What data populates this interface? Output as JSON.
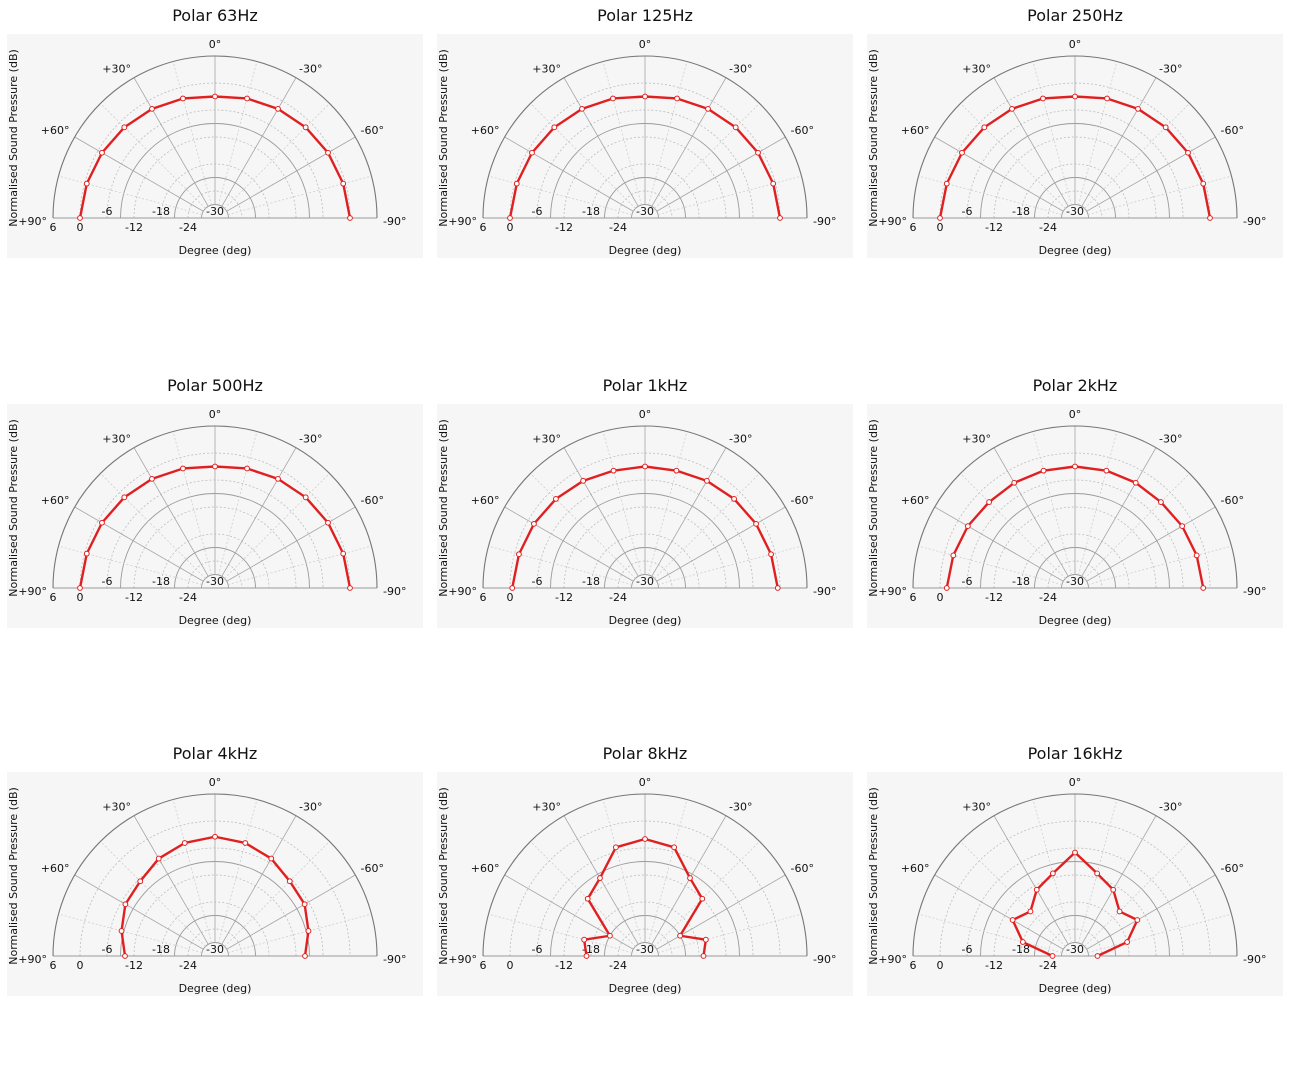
{
  "chart_data": [
    {
      "type": "polar",
      "title": "Polar 63Hz",
      "xlabel": "Degree  (deg)",
      "ylabel": "Normalised Sound Pressure  (dB)",
      "rlim": [
        -30,
        6
      ],
      "angle_range": [
        90,
        -90
      ],
      "r_ticks": [
        "6",
        "0",
        "-6",
        "-12",
        "-18",
        "-24",
        "-30"
      ],
      "angle_labels": [
        "+90°",
        "+60°",
        "+30°",
        "0°",
        "-30°",
        "-60°",
        "-90°"
      ],
      "angles": [
        90,
        75,
        60,
        45,
        30,
        15,
        0,
        -15,
        -30,
        -45,
        -60,
        -75,
        -90
      ],
      "values": [
        0,
        -0.5,
        -1,
        -1.5,
        -2,
        -2.5,
        -3,
        -2.5,
        -2,
        -1.5,
        -1,
        -0.5,
        0
      ],
      "series_color": "#e02020"
    },
    {
      "type": "polar",
      "title": "Polar 125Hz",
      "xlabel": "Degree  (deg)",
      "ylabel": "Normalised Sound Pressure  (dB)",
      "rlim": [
        -30,
        6
      ],
      "angle_range": [
        90,
        -90
      ],
      "r_ticks": [
        "6",
        "0",
        "-6",
        "-12",
        "-18",
        "-24",
        "-30"
      ],
      "angle_labels": [
        "+90°",
        "+60°",
        "+30°",
        "0°",
        "-30°",
        "-60°",
        "-90°"
      ],
      "angles": [
        90,
        75,
        60,
        45,
        30,
        15,
        0,
        -15,
        -30,
        -45,
        -60,
        -75,
        -90
      ],
      "values": [
        0,
        -0.5,
        -1,
        -1.5,
        -2,
        -2.5,
        -3,
        -2.5,
        -2,
        -1.5,
        -1,
        -0.5,
        0
      ],
      "series_color": "#e02020"
    },
    {
      "type": "polar",
      "title": "Polar 250Hz",
      "xlabel": "Degree  (deg)",
      "ylabel": "Normalised Sound Pressure  (dB)",
      "rlim": [
        -30,
        6
      ],
      "angle_range": [
        90,
        -90
      ],
      "r_ticks": [
        "6",
        "0",
        "-6",
        "-12",
        "-18",
        "-24",
        "-30"
      ],
      "angle_labels": [
        "+90°",
        "+60°",
        "+30°",
        "0°",
        "-30°",
        "-60°",
        "-90°"
      ],
      "angles": [
        90,
        75,
        60,
        45,
        30,
        15,
        0,
        -15,
        -30,
        -45,
        -60,
        -75,
        -90
      ],
      "values": [
        0,
        -0.5,
        -1,
        -1.5,
        -2,
        -2.5,
        -3,
        -2.5,
        -2,
        -1.5,
        -1,
        -0.5,
        0
      ],
      "series_color": "#e02020"
    },
    {
      "type": "polar",
      "title": "Polar 500Hz",
      "xlabel": "Degree  (deg)",
      "ylabel": "Normalised Sound Pressure  (dB)",
      "rlim": [
        -30,
        6
      ],
      "angle_range": [
        90,
        -90
      ],
      "r_ticks": [
        "6",
        "0",
        "-6",
        "-12",
        "-18",
        "-24",
        "-30"
      ],
      "angle_labels": [
        "+90°",
        "+60°",
        "+30°",
        "0°",
        "-30°",
        "-60°",
        "-90°"
      ],
      "angles": [
        90,
        75,
        60,
        45,
        30,
        15,
        0,
        -15,
        -30,
        -45,
        -60,
        -75,
        -90
      ],
      "values": [
        0,
        -0.5,
        -1,
        -1.5,
        -2,
        -2.5,
        -3,
        -2.5,
        -2,
        -1.5,
        -1,
        -0.5,
        0
      ],
      "series_color": "#e02020"
    },
    {
      "type": "polar",
      "title": "Polar 1kHz",
      "xlabel": "Degree  (deg)",
      "ylabel": "Normalised Sound Pressure  (dB)",
      "rlim": [
        -30,
        6
      ],
      "angle_range": [
        90,
        -90
      ],
      "r_ticks": [
        "6",
        "0",
        "-6",
        "-12",
        "-18",
        "-24",
        "-30"
      ],
      "angle_labels": [
        "+90°",
        "+60°",
        "+30°",
        "0°",
        "-30°",
        "-60°",
        "-90°"
      ],
      "angles": [
        90,
        75,
        60,
        45,
        30,
        15,
        0,
        -15,
        -30,
        -45,
        -60,
        -75,
        -90
      ],
      "values": [
        -0.5,
        -1,
        -1.5,
        -2,
        -2.5,
        -3,
        -3,
        -3,
        -2.5,
        -2,
        -1.5,
        -1,
        -0.5
      ],
      "series_color": "#e02020"
    },
    {
      "type": "polar",
      "title": "Polar 2kHz",
      "xlabel": "Degree  (deg)",
      "ylabel": "Normalised Sound Pressure  (dB)",
      "rlim": [
        -30,
        6
      ],
      "angle_range": [
        90,
        -90
      ],
      "r_ticks": [
        "6",
        "0",
        "-6",
        "-12",
        "-18",
        "-24",
        "-30"
      ],
      "angle_labels": [
        "+90°",
        "+60°",
        "+30°",
        "0°",
        "-30°",
        "-60°",
        "-90°"
      ],
      "angles": [
        90,
        75,
        60,
        45,
        30,
        15,
        0,
        -15,
        -30,
        -45,
        -60,
        -75,
        -90
      ],
      "values": [
        -1.5,
        -2,
        -2.5,
        -3,
        -3,
        -3,
        -3,
        -3,
        -3,
        -3,
        -2.5,
        -2,
        -1.5
      ],
      "series_color": "#e02020"
    },
    {
      "type": "polar",
      "title": "Polar 4kHz",
      "xlabel": "Degree  (deg)",
      "ylabel": "Normalised Sound Pressure  (dB)",
      "rlim": [
        -30,
        6
      ],
      "angle_range": [
        90,
        -90
      ],
      "r_ticks": [
        "6",
        "0",
        "-6",
        "-12",
        "-18",
        "-24",
        "-30"
      ],
      "angle_labels": [
        "+90°",
        "+60°",
        "+30°",
        "0°",
        "-30°",
        "-60°",
        "-90°"
      ],
      "angles": [
        90,
        75,
        60,
        45,
        30,
        15,
        0,
        -15,
        -30,
        -45,
        -60,
        -75,
        -90
      ],
      "values": [
        -10,
        -8.5,
        -7,
        -6.5,
        -5,
        -4,
        -3.5,
        -4,
        -5,
        -6.5,
        -7,
        -8.5,
        -10
      ],
      "series_color": "#e02020"
    },
    {
      "type": "polar",
      "title": "Polar 8kHz",
      "xlabel": "Degree  (deg)",
      "ylabel": "Normalised Sound Pressure  (dB)",
      "rlim": [
        -30,
        6
      ],
      "angle_range": [
        90,
        -90
      ],
      "r_ticks": [
        "6",
        "0",
        "-6",
        "-12",
        "-18",
        "-24",
        "-30"
      ],
      "angle_labels": [
        "+90°",
        "+60°",
        "+30°",
        "0°",
        "-30°",
        "-60°",
        "-90°"
      ],
      "angles": [
        90,
        75,
        60,
        45,
        30,
        15,
        0,
        -15,
        -30,
        -45,
        -60,
        -75,
        -90
      ],
      "values": [
        -17,
        -16,
        -21,
        -12,
        -10,
        -5,
        -4,
        -5,
        -10,
        -12,
        -21,
        -16,
        -17
      ],
      "series_color": "#e02020"
    },
    {
      "type": "polar",
      "title": "Polar 16kHz",
      "xlabel": "Degree  (deg)",
      "ylabel": "Normalised Sound Pressure  (dB)",
      "rlim": [
        -30,
        6
      ],
      "angle_range": [
        90,
        -90
      ],
      "r_ticks": [
        "6",
        "0",
        "-6",
        "-12",
        "-18",
        "-24",
        "-30"
      ],
      "angle_labels": [
        "+90°",
        "+60°",
        "+30°",
        "0°",
        "-30°",
        "-60°",
        "-90°"
      ],
      "angles": [
        90,
        75,
        60,
        45,
        30,
        15,
        0,
        -15,
        -30,
        -45,
        -60,
        -75,
        -90
      ],
      "values": [
        -25,
        -18,
        -14,
        -16,
        -13,
        -11,
        -7,
        -11,
        -13,
        -16,
        -14,
        -18,
        -25
      ],
      "series_color": "#e02020"
    }
  ]
}
